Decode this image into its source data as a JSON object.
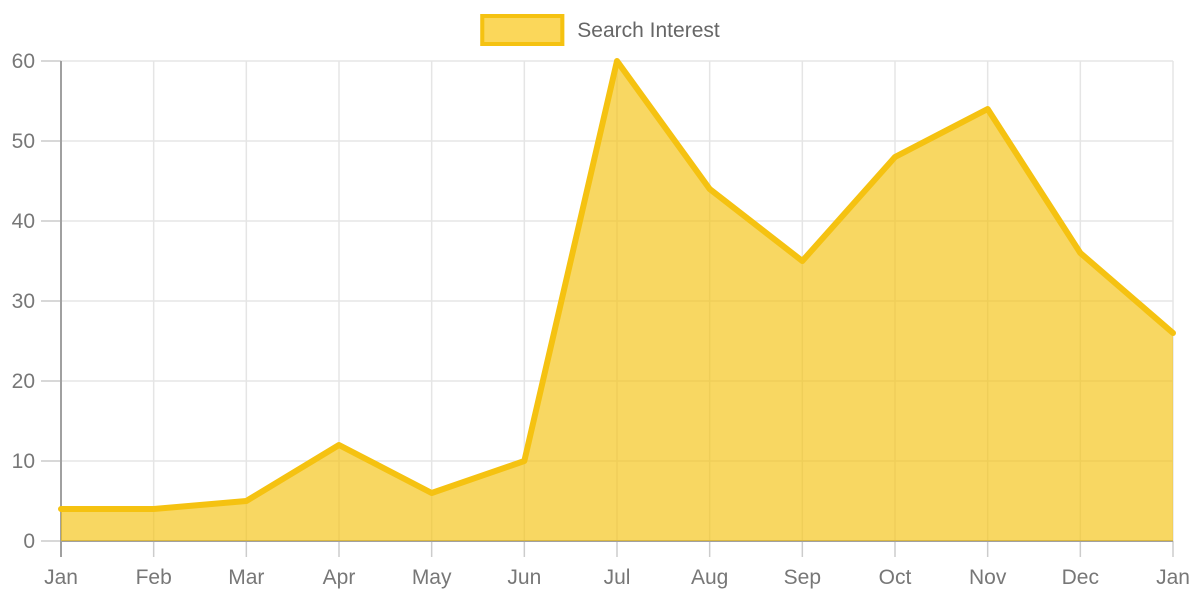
{
  "chart_data": {
    "type": "area",
    "title": "",
    "x": [
      "Jan",
      "Feb",
      "Mar",
      "Apr",
      "May",
      "Jun",
      "Jul",
      "Aug",
      "Sep",
      "Oct",
      "Nov",
      "Dec",
      "Jan"
    ],
    "series": [
      {
        "name": "Search Interest",
        "values": [
          4,
          4,
          5,
          12,
          6,
          10,
          60,
          44,
          35,
          48,
          54,
          36,
          26
        ]
      }
    ],
    "xlabel": "",
    "ylabel": "",
    "ylim": [
      0,
      60
    ],
    "ytick_step": 10,
    "yticks": [
      0,
      10,
      20,
      30,
      40,
      50,
      60
    ],
    "grid": true,
    "legend_position": "top-center",
    "colors": {
      "line": "#F5C211",
      "fill": "#F5C211",
      "fill_opacity": 0.66,
      "axis_line": "#A0A0A0",
      "tick_mark": "#CCCCCC",
      "grid_line": "#E5E5E5",
      "tick_label": "#777777",
      "legend_text": "#666666"
    }
  }
}
